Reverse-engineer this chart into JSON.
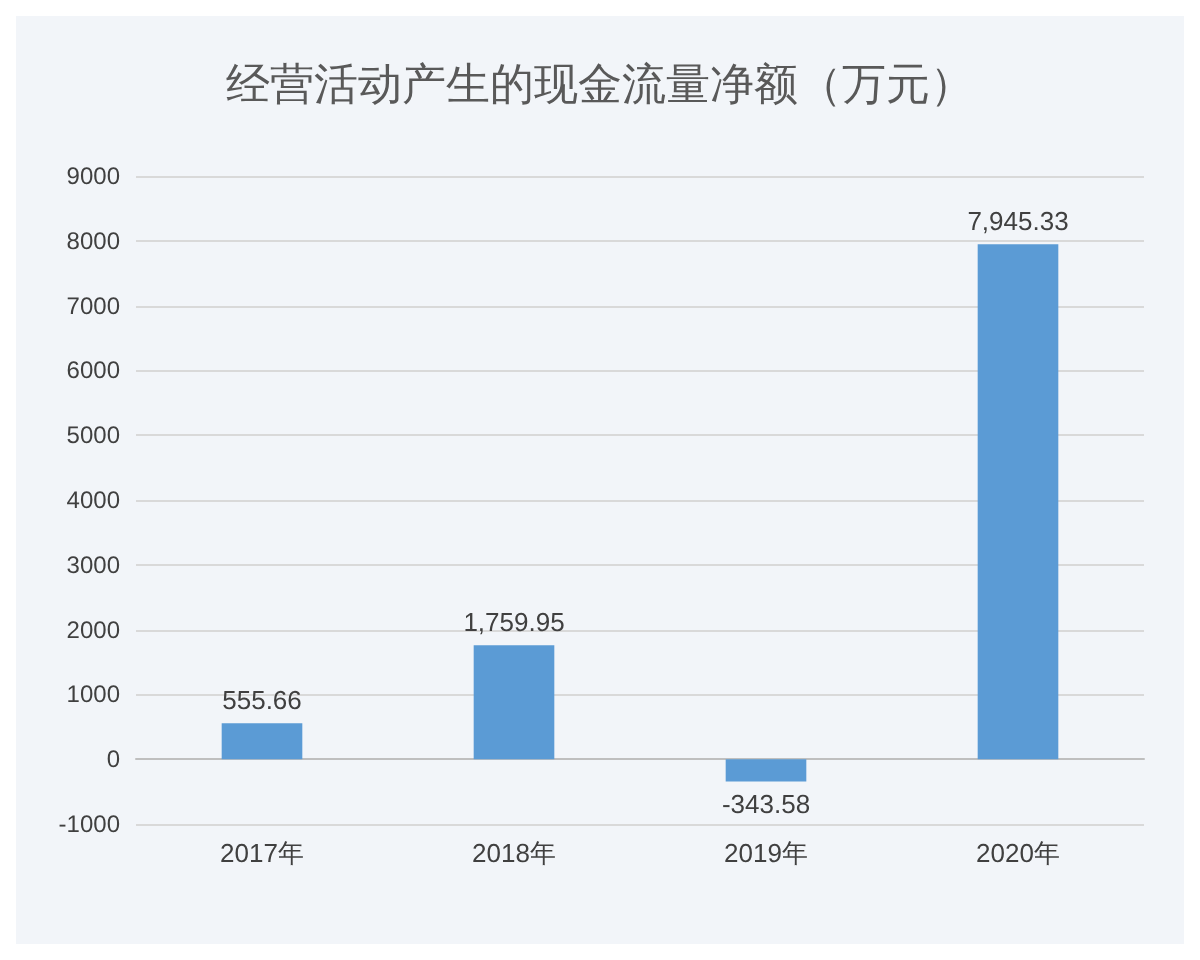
{
  "chart_data": {
    "type": "bar",
    "title": "经营活动产生的现金流量净额（万元）",
    "categories": [
      "2017年",
      "2018年",
      "2019年",
      "2020年"
    ],
    "values": [
      555.66,
      1759.95,
      -343.58,
      7945.33
    ],
    "value_labels": [
      "555.66",
      "1,759.95",
      "-343.58",
      "7,945.33"
    ],
    "color": "#5b9bd5",
    "ylim": [
      -1000,
      9000
    ],
    "yticks": [
      -1000,
      0,
      1000,
      2000,
      3000,
      4000,
      5000,
      6000,
      7000,
      8000,
      9000
    ],
    "grid": true
  }
}
